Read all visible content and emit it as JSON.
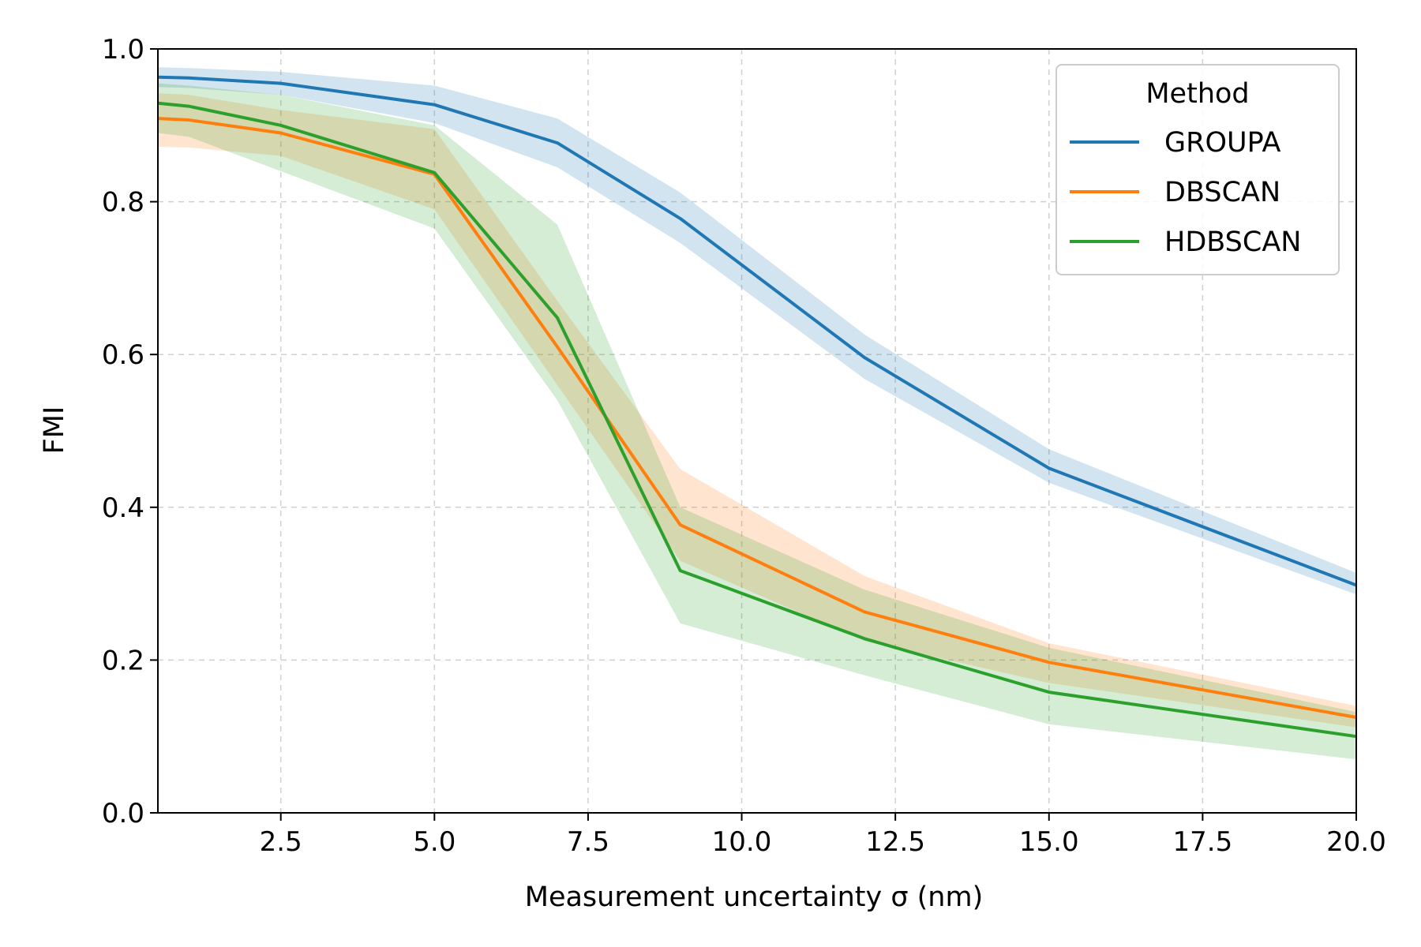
{
  "chart_data": {
    "type": "line",
    "title": "",
    "xlabel": "Measurement uncertainty σ (nm)",
    "ylabel": "FMI",
    "xlim": [
      0.5,
      20.0
    ],
    "ylim": [
      0.0,
      1.0
    ],
    "grid": true,
    "legend_title": "Method",
    "legend_position": "top-right",
    "x_ticks": [
      {
        "value": 2.5,
        "label": "2.5"
      },
      {
        "value": 5.0,
        "label": "5.0"
      },
      {
        "value": 7.5,
        "label": "7.5"
      },
      {
        "value": 10.0,
        "label": "10.0"
      },
      {
        "value": 12.5,
        "label": "12.5"
      },
      {
        "value": 15.0,
        "label": "15.0"
      },
      {
        "value": 17.5,
        "label": "17.5"
      },
      {
        "value": 20.0,
        "label": "20.0"
      }
    ],
    "y_ticks": [
      {
        "value": 0.0,
        "label": "0.0"
      },
      {
        "value": 0.2,
        "label": "0.2"
      },
      {
        "value": 0.4,
        "label": "0.4"
      },
      {
        "value": 0.6,
        "label": "0.6"
      },
      {
        "value": 0.8,
        "label": "0.8"
      },
      {
        "value": 1.0,
        "label": "1.0"
      }
    ],
    "x": [
      0.5,
      1.0,
      2.5,
      5.0,
      7.0,
      9.0,
      12.0,
      15.0,
      20.0
    ],
    "series": [
      {
        "name": "GROUPA",
        "color": "#1f77b4",
        "values": [
          0.963,
          0.962,
          0.955,
          0.927,
          0.877,
          0.778,
          0.596,
          0.451,
          0.298
        ],
        "lower": [
          0.95,
          0.949,
          0.94,
          0.903,
          0.845,
          0.746,
          0.568,
          0.432,
          0.286
        ],
        "upper": [
          0.976,
          0.975,
          0.97,
          0.952,
          0.909,
          0.812,
          0.626,
          0.476,
          0.314
        ]
      },
      {
        "name": "DBSCAN",
        "color": "#ff7f0e",
        "values": [
          0.909,
          0.907,
          0.89,
          0.836,
          0.61,
          0.377,
          0.263,
          0.197,
          0.125
        ],
        "lower": [
          0.872,
          0.871,
          0.86,
          0.79,
          0.56,
          0.33,
          0.225,
          0.17,
          0.112
        ],
        "upper": [
          0.942,
          0.94,
          0.92,
          0.895,
          0.67,
          0.45,
          0.31,
          0.222,
          0.14
        ]
      },
      {
        "name": "HDBSCAN",
        "color": "#2ca02c",
        "values": [
          0.929,
          0.925,
          0.9,
          0.838,
          0.648,
          0.317,
          0.228,
          0.158,
          0.1
        ],
        "lower": [
          0.89,
          0.885,
          0.84,
          0.765,
          0.54,
          0.248,
          0.18,
          0.116,
          0.07
        ],
        "upper": [
          0.955,
          0.952,
          0.94,
          0.9,
          0.77,
          0.4,
          0.292,
          0.216,
          0.132
        ]
      }
    ]
  }
}
